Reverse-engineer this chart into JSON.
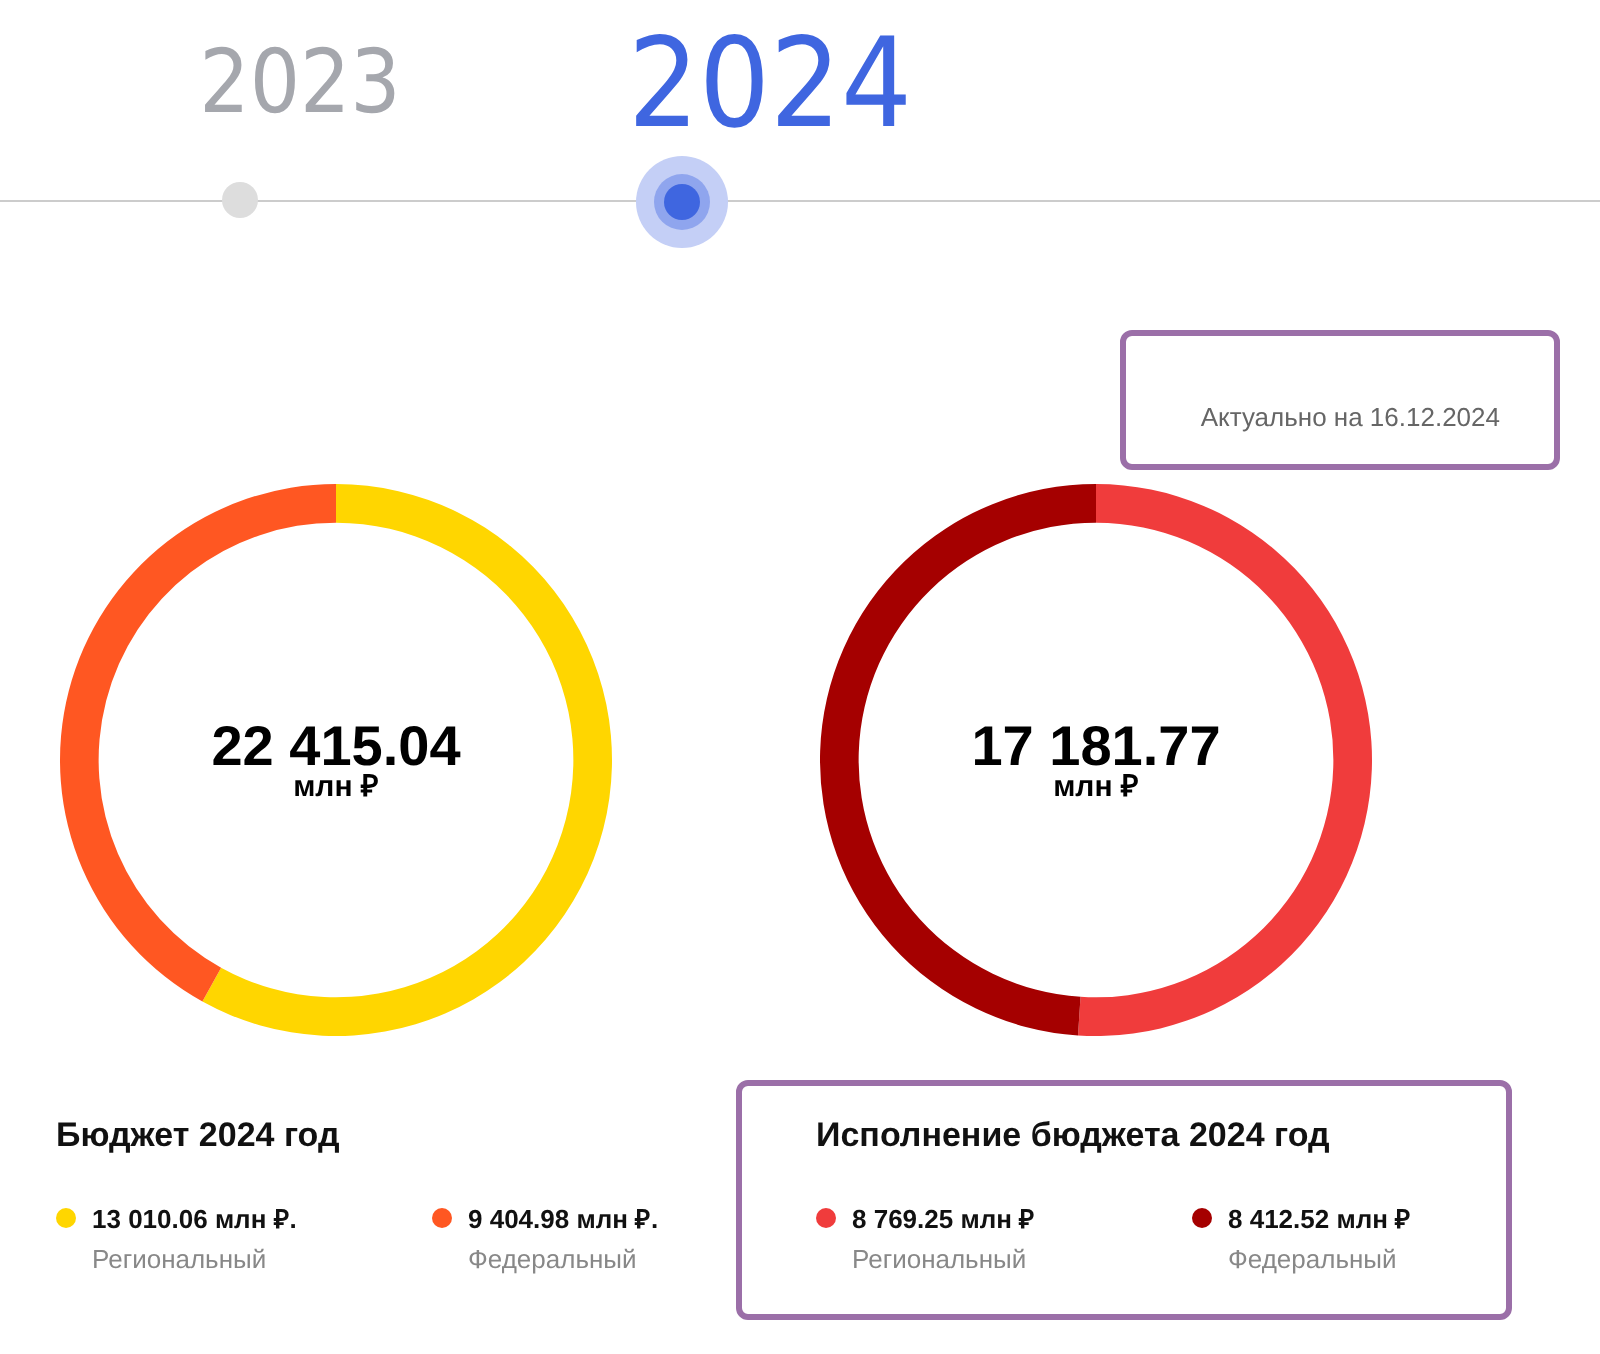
{
  "chart_data": [
    {
      "type": "other",
      "annotations": [
        "2023",
        "2024"
      ]
    },
    {
      "type": "donut",
      "title": "Бюджет 2024 год",
      "categories": [
        "Региональный",
        "Федеральный"
      ],
      "values": [
        13010.06,
        9404.98
      ],
      "colors": [
        "#ffd600",
        "#ff5722"
      ],
      "value_labels": [
        "13 010.06 млн ₽.",
        "9 404.98 млн ₽."
      ],
      "legend": "bottom",
      "annotations": [
        "22 415.04",
        "млн ₽"
      ]
    },
    {
      "type": "donut",
      "title": "Исполнение бюджета 2024 год",
      "categories": [
        "Региональный",
        "Федеральный"
      ],
      "values": [
        8769.25,
        8412.52
      ],
      "colors": [
        "#f03c3c",
        "#a50000"
      ],
      "value_labels": [
        "8 769.25 млн ₽",
        "8 412.52 млн ₽"
      ],
      "legend": "bottom",
      "annotations": [
        "17 181.77",
        "млн ₽",
        "Актуально на 16.12.2024"
      ]
    }
  ]
}
